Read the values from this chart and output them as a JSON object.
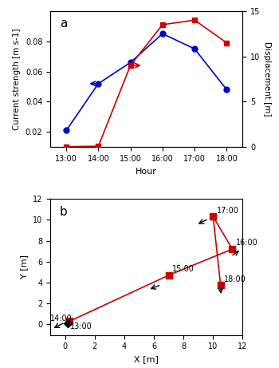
{
  "hours_labels": [
    "13:00",
    "14:00",
    "15:00",
    "16:00",
    "17:00",
    "18:00"
  ],
  "hours_x": [
    0,
    1,
    2,
    3,
    4,
    5
  ],
  "blue_current": [
    0.021,
    0.052,
    0.066,
    0.085,
    0.075,
    0.048
  ],
  "red_displacement": [
    0.05,
    0.1,
    9.0,
    13.5,
    14.0,
    11.5
  ],
  "blue_color": "#0000cc",
  "red_color": "#cc0000",
  "track_x": [
    0.2,
    0.3,
    7.0,
    11.3,
    10.0,
    10.5
  ],
  "track_y": [
    0.1,
    0.3,
    4.7,
    7.2,
    10.3,
    3.8
  ],
  "track_labels": [
    "13:00",
    "14:00",
    "15:00",
    "16:00",
    "17:00",
    "18:00"
  ],
  "label_offsets_x": [
    0.15,
    -1.3,
    0.25,
    0.25,
    0.25,
    0.25
  ],
  "label_offsets_y": [
    -0.5,
    0.0,
    0.35,
    0.35,
    0.35,
    0.25
  ]
}
